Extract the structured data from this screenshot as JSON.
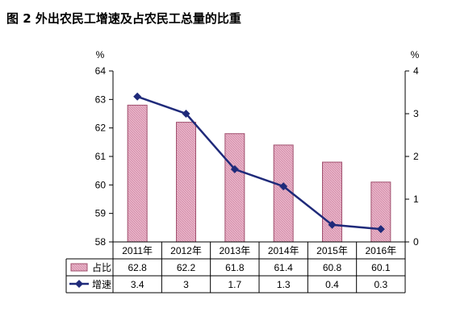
{
  "title": "图 2  外出农民工增速及占农民工总量的比重",
  "chart_data": {
    "type": "bar+line",
    "categories": [
      "2011年",
      "2012年",
      "2013年",
      "2014年",
      "2015年",
      "2016年"
    ],
    "series": [
      {
        "name": "占比",
        "type": "bar",
        "axis": "left",
        "values": [
          62.8,
          62.2,
          61.8,
          61.4,
          60.8,
          60.1
        ],
        "labels": [
          "62.8",
          "62.2",
          "61.8",
          "61.4",
          "60.8",
          "60.1"
        ],
        "color": "#e8b4c8",
        "edge": "#a0506e"
      },
      {
        "name": "增速",
        "type": "line",
        "axis": "right",
        "values": [
          3.4,
          3.0,
          1.7,
          1.3,
          0.4,
          0.3
        ],
        "labels": [
          "3.4",
          "3",
          "1.7",
          "1.3",
          "0.4",
          "0.3"
        ],
        "color": "#1f2a7a"
      }
    ],
    "left_axis": {
      "unit": "%",
      "ylim": [
        58,
        64
      ],
      "ticks": [
        "58",
        "59",
        "60",
        "61",
        "62",
        "63",
        "64"
      ]
    },
    "right_axis": {
      "unit": "%",
      "ylim": [
        0,
        4
      ],
      "ticks": [
        "0",
        "1",
        "2",
        "3",
        "4"
      ]
    },
    "grid": false,
    "legend": "data-table"
  }
}
